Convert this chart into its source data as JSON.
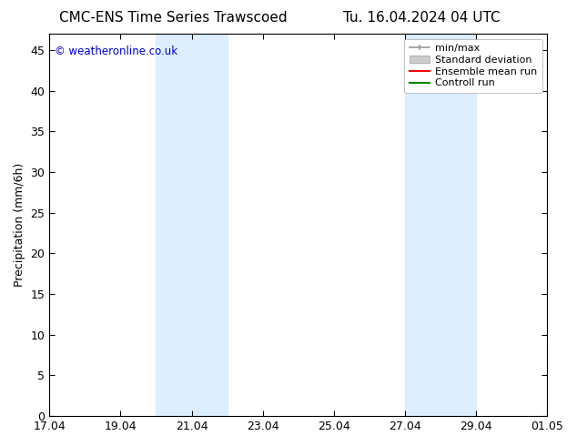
{
  "title_left": "CMC-ENS Time Series Trawscoed",
  "title_right": "Tu. 16.04.2024 04 UTC",
  "ylabel": "Precipitation (mm/6h)",
  "watermark": "© weatheronline.co.uk",
  "watermark_color": "#0000cc",
  "background_color": "#ffffff",
  "plot_bg_color": "#ffffff",
  "ymin": 0,
  "ymax": 47,
  "yticks": [
    0,
    5,
    10,
    15,
    20,
    25,
    30,
    35,
    40,
    45
  ],
  "xtick_labels": [
    "17.04",
    "19.04",
    "21.04",
    "23.04",
    "25.04",
    "27.04",
    "29.04",
    "01.05"
  ],
  "xtick_positions": [
    0,
    2,
    4,
    6,
    8,
    10,
    12,
    14
  ],
  "xmin": 0,
  "xmax": 14,
  "shaded_regions": [
    {
      "xstart": 3,
      "xend": 5,
      "color": "#ddeeff"
    },
    {
      "xstart": 10,
      "xend": 12,
      "color": "#ddeeff"
    }
  ],
  "legend_entries": [
    {
      "label": "min/max",
      "color": "#999999",
      "lw": 1.2
    },
    {
      "label": "Standard deviation",
      "color": "#ccddee",
      "lw": 8
    },
    {
      "label": "Ensemble mean run",
      "color": "#ff0000",
      "lw": 1.5
    },
    {
      "label": "Controll run",
      "color": "#008800",
      "lw": 1.5
    }
  ],
  "title_fontsize": 11,
  "axis_label_fontsize": 9,
  "tick_fontsize": 9,
  "legend_fontsize": 8,
  "title_font": "DejaVu Sans"
}
